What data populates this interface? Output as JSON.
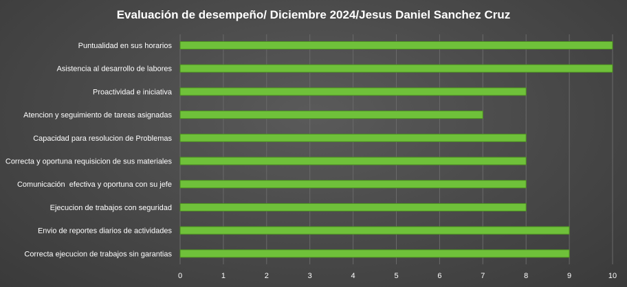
{
  "chart_data": {
    "type": "bar",
    "orientation": "horizontal",
    "title": "Evaluación de desempeño/ Diciembre 2024/Jesus Daniel Sanchez Cruz",
    "categories": [
      "Puntualidad en sus horarios",
      "Asistencia al desarrollo de labores",
      "Proactividad e iniciativa",
      "Atencion y seguimiento de tareas asignadas",
      "Capacidad para resolucion de Problemas",
      "Correcta y oportuna requisicion de sus materiales",
      "Comunicación  efectiva y oportuna con su jefe",
      "Ejecucion de trabajos con seguridad",
      "Envio de reportes diarios de actividades",
      "Correcta ejecucion de trabajos sin garantias"
    ],
    "values": [
      10,
      10,
      8,
      7,
      8,
      8,
      8,
      8,
      9,
      9
    ],
    "xlim": [
      0,
      10
    ],
    "xticks": [
      "0",
      "1",
      "2",
      "3",
      "4",
      "5",
      "6",
      "7",
      "8",
      "9",
      "10"
    ],
    "xlabel": "",
    "ylabel": "",
    "grid": "vertical",
    "legend": "none",
    "bar_color": "#6fc13a",
    "bar_stroke": "#4e8f22",
    "background_color": "#4a4a4a",
    "grid_color": "#6a6a6a",
    "text_color": "#ffffff"
  }
}
